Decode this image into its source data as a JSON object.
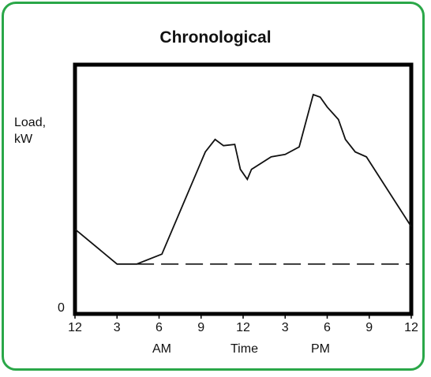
{
  "chart_data": {
    "type": "line",
    "title": "Chronological",
    "ylabel": "Load, kW",
    "y_tick": "0",
    "xlabel": "Time",
    "period_labels": {
      "am": "AM",
      "pm": "PM"
    },
    "x_ticks": [
      "12",
      "3",
      "6",
      "9",
      "12",
      "3",
      "6",
      "9",
      "12"
    ],
    "xlim": [
      0,
      24
    ],
    "ylim": [
      0,
      100
    ],
    "grid": false,
    "legend": "none",
    "series": [
      {
        "x": [
          0,
          3,
          4.4,
          6.2,
          9.3,
          10,
          10.6,
          11.4,
          11.8,
          12.3,
          12.6,
          14,
          15,
          16,
          17,
          17.5,
          18,
          18.8,
          19.3,
          20,
          20.8,
          24
        ],
        "y": [
          34,
          20,
          20,
          24,
          65,
          70,
          67.5,
          68,
          58,
          54,
          58,
          63,
          64,
          67,
          88,
          87,
          83,
          78,
          70,
          65,
          63,
          35
        ]
      },
      {
        "x": [
          4.4,
          24
        ],
        "y": [
          20,
          20
        ]
      }
    ],
    "colors": {
      "line": "#111111",
      "frame": "#2aa748"
    }
  }
}
